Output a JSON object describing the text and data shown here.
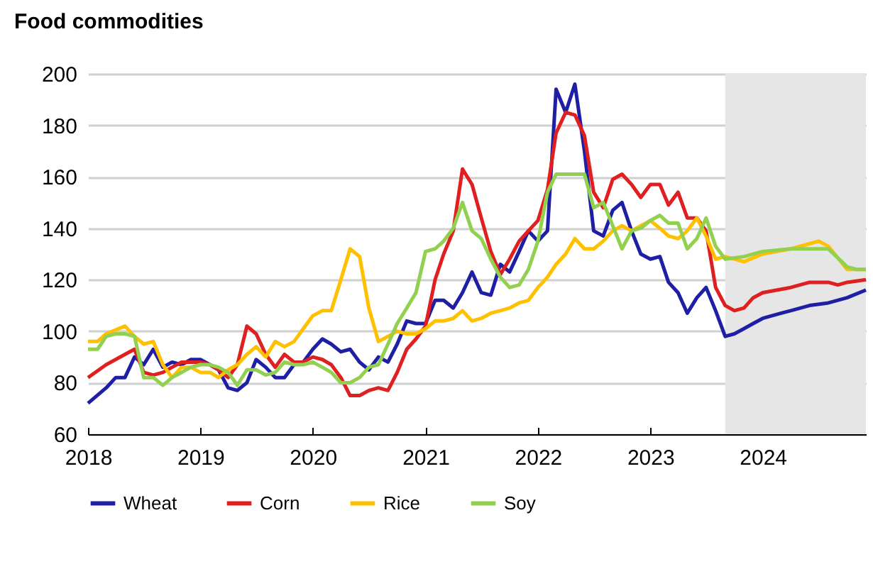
{
  "chart_data": {
    "type": "line",
    "title": "Food commodities",
    "xlim": [
      "2018-01",
      "2024-12"
    ],
    "xticks": [
      {
        "value": "2018-01",
        "label": "2018"
      },
      {
        "value": "2019-01",
        "label": "2019"
      },
      {
        "value": "2020-01",
        "label": "2020"
      },
      {
        "value": "2021-01",
        "label": "2021"
      },
      {
        "value": "2022-01",
        "label": "2022"
      },
      {
        "value": "2023-01",
        "label": "2023"
      },
      {
        "value": "2024-01",
        "label": "2024"
      }
    ],
    "ylim": [
      60,
      200
    ],
    "yticks": [
      60,
      80,
      100,
      120,
      140,
      160,
      180,
      200
    ],
    "grid": "y",
    "legend": "bottom",
    "bands": [
      {
        "axis": "x",
        "from": "2023-09",
        "to": "2024-12",
        "color": "#e6e6e6"
      }
    ],
    "series": [
      {
        "name": "Wheat",
        "color": "#1f1fa6",
        "x": [
          "2018-01",
          "2018-03",
          "2018-04",
          "2018-05",
          "2018-06",
          "2018-07",
          "2018-08",
          "2018-09",
          "2018-10",
          "2018-11",
          "2018-12",
          "2019-01",
          "2019-02",
          "2019-03",
          "2019-04",
          "2019-05",
          "2019-06",
          "2019-07",
          "2019-08",
          "2019-09",
          "2019-10",
          "2019-11",
          "2019-12",
          "2020-01",
          "2020-02",
          "2020-03",
          "2020-04",
          "2020-05",
          "2020-06",
          "2020-07",
          "2020-08",
          "2020-09",
          "2020-10",
          "2020-11",
          "2020-12",
          "2021-01",
          "2021-02",
          "2021-03",
          "2021-04",
          "2021-05",
          "2021-06",
          "2021-07",
          "2021-08",
          "2021-09",
          "2021-10",
          "2021-11",
          "2021-12",
          "2022-01",
          "2022-02",
          "2022-03",
          "2022-04",
          "2022-05",
          "2022-06",
          "2022-07",
          "2022-08",
          "2022-09",
          "2022-10",
          "2022-11",
          "2022-12",
          "2023-01",
          "2023-02",
          "2023-03",
          "2023-04",
          "2023-05",
          "2023-06",
          "2023-07",
          "2023-08",
          "2023-09",
          "2023-10",
          "2023-11",
          "2023-12",
          "2024-01",
          "2024-03",
          "2024-04",
          "2024-06",
          "2024-08",
          "2024-10",
          "2024-12"
        ],
        "values": [
          72,
          78,
          82,
          82,
          90,
          87,
          93,
          86,
          88,
          87,
          89,
          89,
          87,
          85,
          78,
          77,
          80,
          89,
          86,
          82,
          82,
          87,
          88,
          93,
          97,
          95,
          92,
          93,
          88,
          85,
          90,
          88,
          95,
          104,
          103,
          103,
          112,
          112,
          109,
          115,
          123,
          115,
          114,
          126,
          123,
          131,
          139,
          135,
          139,
          194,
          185,
          196,
          170,
          139,
          137,
          147,
          150,
          139,
          130,
          128,
          129,
          119,
          115,
          107,
          113,
          117,
          108,
          98,
          99,
          101,
          103,
          105,
          107,
          108,
          110,
          111,
          113,
          116
        ]
      },
      {
        "name": "Corn",
        "color": "#e02020",
        "x": [
          "2018-01",
          "2018-03",
          "2018-05",
          "2018-06",
          "2018-07",
          "2018-08",
          "2018-09",
          "2018-10",
          "2018-11",
          "2018-12",
          "2019-01",
          "2019-02",
          "2019-03",
          "2019-04",
          "2019-05",
          "2019-06",
          "2019-07",
          "2019-08",
          "2019-09",
          "2019-10",
          "2019-11",
          "2019-12",
          "2020-01",
          "2020-02",
          "2020-03",
          "2020-04",
          "2020-05",
          "2020-06",
          "2020-07",
          "2020-08",
          "2020-09",
          "2020-10",
          "2020-11",
          "2020-12",
          "2021-01",
          "2021-02",
          "2021-03",
          "2021-04",
          "2021-05",
          "2021-06",
          "2021-07",
          "2021-08",
          "2021-09",
          "2021-10",
          "2021-11",
          "2021-12",
          "2022-01",
          "2022-02",
          "2022-03",
          "2022-04",
          "2022-05",
          "2022-06",
          "2022-07",
          "2022-08",
          "2022-09",
          "2022-10",
          "2022-11",
          "2022-12",
          "2023-01",
          "2023-02",
          "2023-03",
          "2023-04",
          "2023-05",
          "2023-06",
          "2023-07",
          "2023-08",
          "2023-09",
          "2023-10",
          "2023-11",
          "2023-12",
          "2024-01",
          "2024-04",
          "2024-06",
          "2024-08",
          "2024-09",
          "2024-10",
          "2024-12"
        ],
        "values": [
          82,
          87,
          91,
          93,
          84,
          83,
          84,
          86,
          88,
          88,
          88,
          87,
          85,
          82,
          87,
          102,
          99,
          91,
          86,
          91,
          88,
          88,
          90,
          89,
          87,
          82,
          75,
          75,
          77,
          78,
          77,
          84,
          93,
          97,
          102,
          120,
          130,
          139,
          163,
          157,
          144,
          131,
          122,
          128,
          135,
          139,
          143,
          155,
          177,
          185,
          184,
          176,
          154,
          148,
          159,
          161,
          157,
          152,
          157,
          157,
          149,
          154,
          144,
          144,
          139,
          117,
          110,
          108,
          109,
          113,
          115,
          117,
          119,
          119,
          118,
          119,
          120
        ]
      },
      {
        "name": "Rice",
        "color": "#ffc000",
        "x": [
          "2018-01",
          "2018-02",
          "2018-03",
          "2018-05",
          "2018-06",
          "2018-07",
          "2018-08",
          "2018-09",
          "2018-10",
          "2018-11",
          "2018-12",
          "2019-01",
          "2019-02",
          "2019-03",
          "2019-04",
          "2019-05",
          "2019-06",
          "2019-07",
          "2019-08",
          "2019-09",
          "2019-10",
          "2019-11",
          "2019-12",
          "2020-01",
          "2020-02",
          "2020-03",
          "2020-04",
          "2020-05",
          "2020-06",
          "2020-07",
          "2020-08",
          "2020-09",
          "2020-10",
          "2020-11",
          "2020-12",
          "2021-01",
          "2021-02",
          "2021-03",
          "2021-04",
          "2021-05",
          "2021-06",
          "2021-07",
          "2021-08",
          "2021-09",
          "2021-10",
          "2021-11",
          "2021-12",
          "2022-01",
          "2022-02",
          "2022-03",
          "2022-04",
          "2022-05",
          "2022-06",
          "2022-07",
          "2022-08",
          "2022-09",
          "2022-10",
          "2022-11",
          "2022-12",
          "2023-01",
          "2023-02",
          "2023-03",
          "2023-04",
          "2023-05",
          "2023-06",
          "2023-07",
          "2023-08",
          "2023-09",
          "2023-11",
          "2024-01",
          "2024-04",
          "2024-07",
          "2024-08",
          "2024-10",
          "2024-12"
        ],
        "values": [
          96,
          96,
          99,
          102,
          98,
          95,
          96,
          87,
          82,
          86,
          86,
          84,
          84,
          82,
          85,
          87,
          91,
          94,
          90,
          96,
          94,
          96,
          101,
          106,
          108,
          108,
          120,
          132,
          129,
          109,
          96,
          98,
          100,
          99,
          99,
          101,
          104,
          104,
          105,
          108,
          104,
          105,
          107,
          108,
          109,
          111,
          112,
          117,
          121,
          126,
          130,
          136,
          132,
          132,
          135,
          139,
          141,
          139,
          141,
          143,
          140,
          137,
          136,
          139,
          144,
          137,
          128,
          129,
          127,
          130,
          132,
          135,
          133,
          124,
          124
        ]
      },
      {
        "name": "Soy",
        "color": "#92d050",
        "x": [
          "2018-01",
          "2018-02",
          "2018-03",
          "2018-04",
          "2018-05",
          "2018-06",
          "2018-07",
          "2018-08",
          "2018-09",
          "2018-10",
          "2018-11",
          "2018-12",
          "2019-01",
          "2019-02",
          "2019-03",
          "2019-04",
          "2019-05",
          "2019-06",
          "2019-07",
          "2019-08",
          "2019-09",
          "2019-10",
          "2019-11",
          "2019-12",
          "2020-01",
          "2020-02",
          "2020-03",
          "2020-04",
          "2020-05",
          "2020-06",
          "2020-07",
          "2020-08",
          "2020-09",
          "2020-10",
          "2020-11",
          "2020-12",
          "2021-01",
          "2021-02",
          "2021-03",
          "2021-04",
          "2021-05",
          "2021-06",
          "2021-07",
          "2021-08",
          "2021-09",
          "2021-10",
          "2021-11",
          "2021-12",
          "2022-01",
          "2022-02",
          "2022-03",
          "2022-04",
          "2022-05",
          "2022-06",
          "2022-07",
          "2022-08",
          "2022-09",
          "2022-10",
          "2022-11",
          "2022-12",
          "2023-01",
          "2023-02",
          "2023-03",
          "2023-04",
          "2023-05",
          "2023-06",
          "2023-07",
          "2023-08",
          "2023-09",
          "2023-11",
          "2024-01",
          "2024-04",
          "2024-08",
          "2024-10",
          "2024-11",
          "2024-12"
        ],
        "values": [
          93,
          93,
          98,
          99,
          99,
          98,
          82,
          82,
          79,
          82,
          84,
          86,
          87,
          87,
          86,
          84,
          79,
          85,
          85,
          83,
          84,
          88,
          87,
          87,
          88,
          86,
          84,
          80,
          80,
          82,
          86,
          87,
          95,
          103,
          109,
          115,
          131,
          132,
          135,
          140,
          150,
          139,
          136,
          128,
          121,
          117,
          118,
          124,
          135,
          154,
          161,
          161,
          161,
          161,
          148,
          150,
          141,
          132,
          139,
          140,
          143,
          145,
          142,
          142,
          132,
          136,
          144,
          133,
          128,
          129,
          131,
          132,
          132,
          125,
          124,
          124
        ]
      }
    ]
  }
}
